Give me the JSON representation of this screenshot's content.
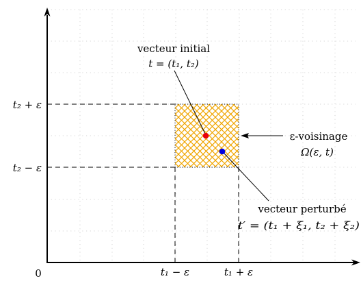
{
  "origin_label": "0",
  "y_ticks": {
    "upper": "t₂ + ε",
    "lower": "t₂ − ε"
  },
  "x_ticks": {
    "lower": "t₁ − ε",
    "upper": "t₁ + ε"
  },
  "initial_vector": {
    "caption": "vecteur initial",
    "formula": "t = (t₁, t₂)",
    "color": "#e8000b"
  },
  "perturbed_vector": {
    "caption": "vecteur perturbé",
    "formula": "t′ = (t₁ + ξ₁, t₂ + ξ₂)",
    "color": "#0000e0"
  },
  "neighborhood": {
    "caption": "ε-voisinage",
    "formula": "Ω(ε, t)",
    "hatch_color": "#f0a500"
  }
}
